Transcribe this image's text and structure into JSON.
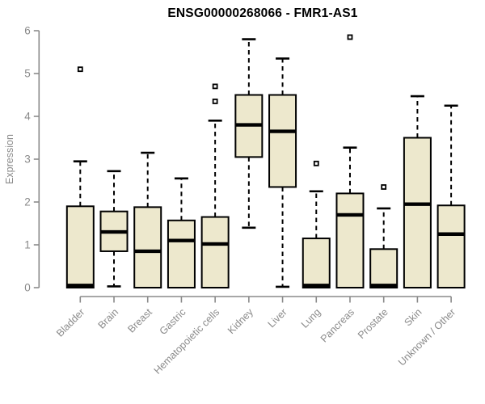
{
  "title": "ENSG00000268066 - FMR1-AS1",
  "colors": {
    "box_fill": "#EDE8CD",
    "box_border": "#000000",
    "median": "#000000",
    "whisker": "#000000",
    "outlier_fill": "#ffffff",
    "axis_line": "#8a8a8a",
    "axis_text": "#8a8a8a",
    "title_text": "#000000",
    "background": "#ffffff"
  },
  "chart_data": {
    "type": "boxplot",
    "title": "ENSG00000268066 - FMR1-AS1",
    "xlabel": "",
    "ylabel": "Expression",
    "ylim": [
      0,
      6
    ],
    "yticks": [
      0,
      1,
      2,
      3,
      4,
      5,
      6
    ],
    "grid": "off",
    "legend": "none",
    "categories": [
      "Bladder",
      "Brain",
      "Breast",
      "Gastric",
      "Hematopoietic cells",
      "Kidney",
      "Liver",
      "Lung",
      "Pancreas",
      "Prostate",
      "Skin",
      "Unknown / Other"
    ],
    "series": [
      {
        "name": "Bladder",
        "whisker_low": 0,
        "q1": 0,
        "median": 0.05,
        "q3": 1.9,
        "whisker_high": 2.95,
        "outliers": [
          5.1
        ]
      },
      {
        "name": "Brain",
        "whisker_low": 0.03,
        "q1": 0.85,
        "median": 1.3,
        "q3": 1.78,
        "whisker_high": 2.72,
        "outliers": []
      },
      {
        "name": "Breast",
        "whisker_low": 0,
        "q1": 0,
        "median": 0.85,
        "q3": 1.88,
        "whisker_high": 3.15,
        "outliers": []
      },
      {
        "name": "Gastric",
        "whisker_low": 0,
        "q1": 0,
        "median": 1.1,
        "q3": 1.57,
        "whisker_high": 2.55,
        "outliers": []
      },
      {
        "name": "Hematopoietic cells",
        "whisker_low": 0,
        "q1": 0,
        "median": 1.02,
        "q3": 1.65,
        "whisker_high": 3.9,
        "outliers": [
          4.35,
          4.7
        ]
      },
      {
        "name": "Kidney",
        "whisker_low": 1.4,
        "q1": 3.05,
        "median": 3.8,
        "q3": 4.5,
        "whisker_high": 5.8,
        "outliers": []
      },
      {
        "name": "Liver",
        "whisker_low": 0.02,
        "q1": 2.35,
        "median": 3.65,
        "q3": 4.5,
        "whisker_high": 5.35,
        "outliers": []
      },
      {
        "name": "Lung",
        "whisker_low": 0,
        "q1": 0,
        "median": 0.05,
        "q3": 1.15,
        "whisker_high": 2.25,
        "outliers": [
          2.9
        ]
      },
      {
        "name": "Pancreas",
        "whisker_low": 0,
        "q1": 0,
        "median": 1.7,
        "q3": 2.2,
        "whisker_high": 3.27,
        "outliers": [
          5.85
        ]
      },
      {
        "name": "Prostate",
        "whisker_low": 0,
        "q1": 0,
        "median": 0.05,
        "q3": 0.9,
        "whisker_high": 1.85,
        "outliers": [
          2.35
        ]
      },
      {
        "name": "Skin",
        "whisker_low": 0,
        "q1": 0,
        "median": 1.95,
        "q3": 3.5,
        "whisker_high": 4.47,
        "outliers": []
      },
      {
        "name": "Unknown / Other",
        "whisker_low": 0,
        "q1": 0,
        "median": 1.25,
        "q3": 1.92,
        "whisker_high": 4.25,
        "outliers": []
      }
    ]
  }
}
